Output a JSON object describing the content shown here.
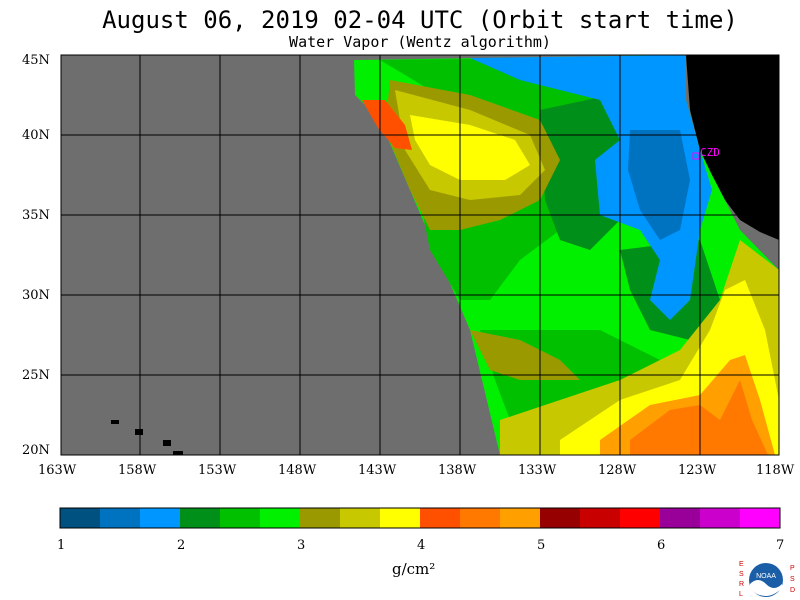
{
  "title": "August 06, 2019  02-04 UTC  (Orbit start time)",
  "subtitle": "Water Vapor (Wentz algorithm)",
  "map": {
    "lat_labels": [
      "45N",
      "40N",
      "35N",
      "30N",
      "25N",
      "20N"
    ],
    "lon_labels": [
      "163W",
      "158W",
      "153W",
      "148W",
      "143W",
      "138W",
      "133W",
      "128W",
      "123W",
      "118W"
    ],
    "station_label": "CZD",
    "colors": {
      "nodata": "#6e6e6e",
      "land": "#000000",
      "grid": "#000000",
      "station": "#ff00ff"
    }
  },
  "colorbar": {
    "tick_labels": [
      "1",
      "2",
      "3",
      "4",
      "5",
      "6",
      "7"
    ],
    "unit_label": "g/cm²",
    "colors": [
      "#005080",
      "#0073c0",
      "#0096ff",
      "#00901a",
      "#00c000",
      "#00f000",
      "#9a9a00",
      "#c8c800",
      "#ffff00",
      "#ff5000",
      "#ff7800",
      "#ffa000",
      "#960000",
      "#c80000",
      "#ff0000",
      "#990099",
      "#cc00cc",
      "#ff00ff"
    ]
  },
  "logo": {
    "left_letters": "ESRL",
    "right_letters": "PSD",
    "center_text": "NOAA"
  }
}
